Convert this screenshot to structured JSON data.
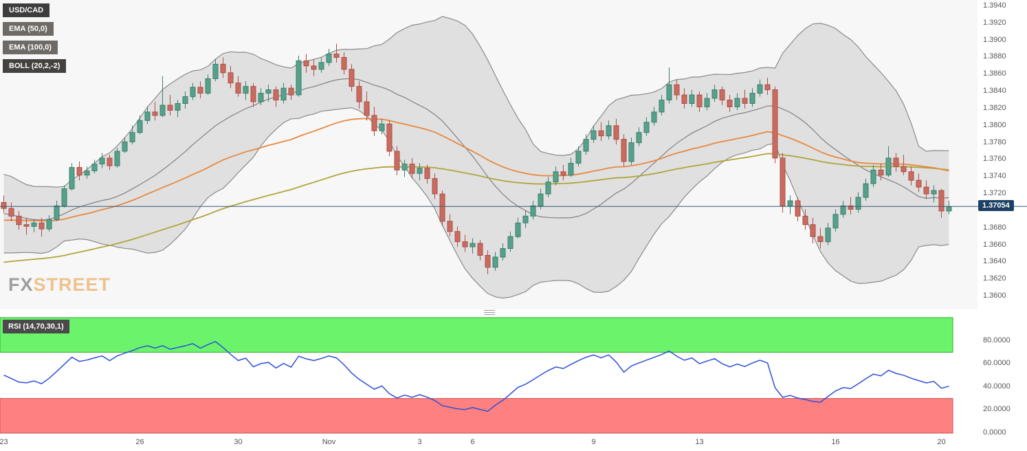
{
  "logo": {
    "part1": "FX",
    "part2": "STREET"
  },
  "legend": [
    {
      "name": "symbol-label",
      "label": "USD/CAD",
      "bg": "#3d3d3d"
    },
    {
      "name": "ema50-label",
      "label": "EMA (50,0)",
      "bg": "#6e6b66"
    },
    {
      "name": "ema100-label",
      "label": "EMA (100,0)",
      "bg": "#6e6b66"
    },
    {
      "name": "boll-label",
      "label": "BOLL (20,2,-2)",
      "bg": "#44423f"
    }
  ],
  "colors": {
    "chart_bg": "#f7f7f7",
    "up_candle": "#55a18b",
    "up_candle_border": "#3d7e6b",
    "down_candle": "#cb6b60",
    "down_candle_border": "#a84f46",
    "ema50": "#e8883e",
    "ema100": "#b1a43a",
    "boll_fill": "#9a9a9a",
    "boll_line": "#8a8a8a",
    "boll_mid": "#808080",
    "price_line": "#3a5878",
    "last_price_bg": "#1c3f63",
    "rsi_line": "#2c4fd8",
    "overbought_fill": "#6cf36c",
    "overbought_border": "#2fae2f",
    "oversold_fill": "#ff8080",
    "oversold_border": "#cc5050",
    "rsi_label_bg": "#4a4a4a"
  },
  "chart_data": [
    {
      "type": "candlestick",
      "symbol": "USD/CAD",
      "last_price": 1.37054,
      "last_price_label": "1.37054",
      "overlays": [
        {
          "name": "EMA",
          "params": "50,0"
        },
        {
          "name": "EMA",
          "params": "100,0"
        },
        {
          "name": "BOLL",
          "params": "20,2,-2"
        }
      ],
      "ylim": [
        1.3585,
        1.3948
      ],
      "y_ticks": [
        "1.3940",
        "1.3920",
        "1.3900",
        "1.3880",
        "1.3860",
        "1.3840",
        "1.3820",
        "1.3800",
        "1.3780",
        "1.3760",
        "1.3740",
        "1.3720",
        "1.3680",
        "1.3660",
        "1.3640",
        "1.3620",
        "1.3600"
      ],
      "x_labels": [
        [
          "23",
          0
        ],
        [
          "26",
          18
        ],
        [
          "30",
          31
        ],
        [
          "Nov",
          43
        ],
        [
          "3",
          55
        ],
        [
          "6",
          62
        ],
        [
          "9",
          78
        ],
        [
          "13",
          92
        ],
        [
          "16",
          110
        ],
        [
          "20",
          124
        ]
      ],
      "warmup_closes": [
        1.37,
        1.372,
        1.373,
        1.3725,
        1.371,
        1.369,
        1.367,
        1.3655,
        1.365,
        1.366,
        1.3675,
        1.369,
        1.3705,
        1.3715,
        1.372,
        1.371,
        1.37,
        1.3695,
        1.3705,
        1.371
      ],
      "candles": [
        [
          1.371,
          1.3718,
          1.3698,
          1.3703
        ],
        [
          1.3703,
          1.371,
          1.3688,
          1.3694
        ],
        [
          1.3694,
          1.37,
          1.3678,
          1.3684
        ],
        [
          1.3684,
          1.3692,
          1.3672,
          1.3682
        ],
        [
          1.3682,
          1.369,
          1.3675,
          1.3686
        ],
        [
          1.3686,
          1.3692,
          1.367,
          1.3679
        ],
        [
          1.3679,
          1.3695,
          1.3676,
          1.369
        ],
        [
          1.369,
          1.3712,
          1.3688,
          1.3706
        ],
        [
          1.3706,
          1.373,
          1.3704,
          1.3726
        ],
        [
          1.3726,
          1.3756,
          1.3724,
          1.3751
        ],
        [
          1.3751,
          1.3758,
          1.3736,
          1.3742
        ],
        [
          1.3742,
          1.3752,
          1.3738,
          1.3747
        ],
        [
          1.3747,
          1.376,
          1.3744,
          1.3755
        ],
        [
          1.3755,
          1.3768,
          1.375,
          1.3762
        ],
        [
          1.3762,
          1.3766,
          1.3748,
          1.3753
        ],
        [
          1.3753,
          1.3774,
          1.3751,
          1.377
        ],
        [
          1.377,
          1.3786,
          1.3768,
          1.3781
        ],
        [
          1.3781,
          1.38,
          1.3778,
          1.3792
        ],
        [
          1.3792,
          1.3812,
          1.379,
          1.3806
        ],
        [
          1.3806,
          1.3822,
          1.3802,
          1.3816
        ],
        [
          1.3816,
          1.3828,
          1.3806,
          1.3812
        ],
        [
          1.3812,
          1.3858,
          1.381,
          1.3824
        ],
        [
          1.3824,
          1.3836,
          1.3812,
          1.3818
        ],
        [
          1.3818,
          1.383,
          1.381,
          1.3826
        ],
        [
          1.3826,
          1.384,
          1.382,
          1.3834
        ],
        [
          1.3834,
          1.385,
          1.383,
          1.3845
        ],
        [
          1.3845,
          1.3852,
          1.3832,
          1.3838
        ],
        [
          1.3838,
          1.386,
          1.3836,
          1.3855
        ],
        [
          1.3855,
          1.3878,
          1.3852,
          1.3872
        ],
        [
          1.3872,
          1.388,
          1.3856,
          1.3862
        ],
        [
          1.3862,
          1.387,
          1.3844,
          1.385
        ],
        [
          1.385,
          1.3858,
          1.3834,
          1.3838
        ],
        [
          1.3838,
          1.3852,
          1.383,
          1.3846
        ],
        [
          1.3846,
          1.385,
          1.3822,
          1.3828
        ],
        [
          1.3828,
          1.3844,
          1.3824,
          1.3838
        ],
        [
          1.3838,
          1.3848,
          1.3828,
          1.3842
        ],
        [
          1.3842,
          1.3846,
          1.3822,
          1.383
        ],
        [
          1.383,
          1.385,
          1.3826,
          1.3844
        ],
        [
          1.3844,
          1.3848,
          1.383,
          1.3836
        ],
        [
          1.3836,
          1.3882,
          1.3834,
          1.3876
        ],
        [
          1.3876,
          1.3884,
          1.3862,
          1.387
        ],
        [
          1.387,
          1.3878,
          1.3858,
          1.3866
        ],
        [
          1.3866,
          1.388,
          1.3862,
          1.3874
        ],
        [
          1.3874,
          1.389,
          1.387,
          1.3884
        ],
        [
          1.3884,
          1.3896,
          1.3874,
          1.388
        ],
        [
          1.388,
          1.3886,
          1.386,
          1.3866
        ],
        [
          1.3866,
          1.3872,
          1.384,
          1.3846
        ],
        [
          1.3846,
          1.3852,
          1.382,
          1.3828
        ],
        [
          1.3828,
          1.384,
          1.3806,
          1.3812
        ],
        [
          1.3812,
          1.3822,
          1.3788,
          1.3794
        ],
        [
          1.3794,
          1.3808,
          1.379,
          1.3802
        ],
        [
          1.3802,
          1.3806,
          1.3764,
          1.377
        ],
        [
          1.377,
          1.3776,
          1.3742,
          1.3748
        ],
        [
          1.3748,
          1.376,
          1.374,
          1.3755
        ],
        [
          1.3755,
          1.3762,
          1.3738,
          1.3744
        ],
        [
          1.3744,
          1.3756,
          1.3736,
          1.375
        ],
        [
          1.375,
          1.3754,
          1.3732,
          1.3738
        ],
        [
          1.3738,
          1.3744,
          1.3714,
          1.372
        ],
        [
          1.372,
          1.3724,
          1.3682,
          1.3688
        ],
        [
          1.3688,
          1.3696,
          1.367,
          1.3676
        ],
        [
          1.3676,
          1.3682,
          1.3658,
          1.3664
        ],
        [
          1.3664,
          1.3672,
          1.3652,
          1.3658
        ],
        [
          1.3658,
          1.3668,
          1.365,
          1.3662
        ],
        [
          1.3662,
          1.3666,
          1.3642,
          1.3648
        ],
        [
          1.3648,
          1.3654,
          1.3626,
          1.3634
        ],
        [
          1.3634,
          1.3652,
          1.363,
          1.3646
        ],
        [
          1.3646,
          1.3662,
          1.3642,
          1.3656
        ],
        [
          1.3656,
          1.3676,
          1.3652,
          1.367
        ],
        [
          1.367,
          1.3692,
          1.3668,
          1.3686
        ],
        [
          1.3686,
          1.37,
          1.368,
          1.3694
        ],
        [
          1.3694,
          1.3712,
          1.369,
          1.3706
        ],
        [
          1.3706,
          1.3726,
          1.3702,
          1.372
        ],
        [
          1.372,
          1.374,
          1.3716,
          1.3734
        ],
        [
          1.3734,
          1.3752,
          1.373,
          1.3746
        ],
        [
          1.3746,
          1.3754,
          1.3736,
          1.3742
        ],
        [
          1.3742,
          1.3762,
          1.374,
          1.3756
        ],
        [
          1.3756,
          1.3776,
          1.3752,
          1.377
        ],
        [
          1.377,
          1.379,
          1.3766,
          1.3784
        ],
        [
          1.3784,
          1.38,
          1.378,
          1.3794
        ],
        [
          1.3794,
          1.3804,
          1.3782,
          1.3788
        ],
        [
          1.3788,
          1.3806,
          1.3784,
          1.38
        ],
        [
          1.38,
          1.3808,
          1.3778,
          1.3784
        ],
        [
          1.3784,
          1.379,
          1.3752,
          1.3758
        ],
        [
          1.3758,
          1.3786,
          1.3754,
          1.378
        ],
        [
          1.378,
          1.3798,
          1.3776,
          1.3792
        ],
        [
          1.3792,
          1.381,
          1.3788,
          1.3804
        ],
        [
          1.3804,
          1.3822,
          1.38,
          1.3816
        ],
        [
          1.3816,
          1.3836,
          1.3812,
          1.383
        ],
        [
          1.383,
          1.3868,
          1.3826,
          1.3848
        ],
        [
          1.3848,
          1.3854,
          1.383,
          1.3836
        ],
        [
          1.3836,
          1.3844,
          1.382,
          1.3826
        ],
        [
          1.3826,
          1.3842,
          1.3822,
          1.3836
        ],
        [
          1.3836,
          1.384,
          1.3816,
          1.3822
        ],
        [
          1.3822,
          1.3838,
          1.3818,
          1.3832
        ],
        [
          1.3832,
          1.3848,
          1.3828,
          1.3842
        ],
        [
          1.3842,
          1.3846,
          1.3824,
          1.383
        ],
        [
          1.383,
          1.3836,
          1.3816,
          1.3822
        ],
        [
          1.3822,
          1.3838,
          1.3818,
          1.3832
        ],
        [
          1.3832,
          1.3842,
          1.382,
          1.3826
        ],
        [
          1.3826,
          1.3844,
          1.3822,
          1.3838
        ],
        [
          1.3838,
          1.3854,
          1.3834,
          1.3848
        ],
        [
          1.3848,
          1.3856,
          1.3836,
          1.3842
        ],
        [
          1.3842,
          1.3846,
          1.3756,
          1.3762
        ],
        [
          1.3762,
          1.3768,
          1.3698,
          1.3706
        ],
        [
          1.3706,
          1.3718,
          1.3696,
          1.3712
        ],
        [
          1.3712,
          1.3716,
          1.3688,
          1.3694
        ],
        [
          1.3694,
          1.3702,
          1.3678,
          1.3684
        ],
        [
          1.3684,
          1.3692,
          1.3662,
          1.367
        ],
        [
          1.367,
          1.368,
          1.3656,
          1.3664
        ],
        [
          1.3664,
          1.3686,
          1.366,
          1.368
        ],
        [
          1.368,
          1.3702,
          1.3676,
          1.3696
        ],
        [
          1.3696,
          1.3712,
          1.3692,
          1.3706
        ],
        [
          1.3706,
          1.3716,
          1.3696,
          1.3702
        ],
        [
          1.3702,
          1.3722,
          1.3698,
          1.3716
        ],
        [
          1.3716,
          1.3738,
          1.3712,
          1.3732
        ],
        [
          1.3732,
          1.3754,
          1.3728,
          1.3748
        ],
        [
          1.3748,
          1.3756,
          1.3736,
          1.3742
        ],
        [
          1.3742,
          1.3776,
          1.374,
          1.3762
        ],
        [
          1.3762,
          1.3768,
          1.3746,
          1.3752
        ],
        [
          1.3752,
          1.3766,
          1.3742,
          1.3746
        ],
        [
          1.3746,
          1.3752,
          1.373,
          1.3736
        ],
        [
          1.3736,
          1.3744,
          1.3722,
          1.3728
        ],
        [
          1.3728,
          1.3736,
          1.3714,
          1.372
        ],
        [
          1.372,
          1.373,
          1.371,
          1.3724
        ],
        [
          1.3724,
          1.3726,
          1.3692,
          1.37
        ],
        [
          1.37,
          1.3712,
          1.3696,
          1.3705
        ]
      ]
    },
    {
      "type": "line",
      "label": "RSI (14,70,30,1)",
      "params": {
        "period": 14,
        "overbought": 70,
        "oversold": 30,
        "ma": 1
      },
      "ylim": [
        0,
        100
      ],
      "y_ticks": [
        "80.0000",
        "60.0000",
        "40.0000",
        "20.0000",
        "0.0000"
      ]
    }
  ]
}
